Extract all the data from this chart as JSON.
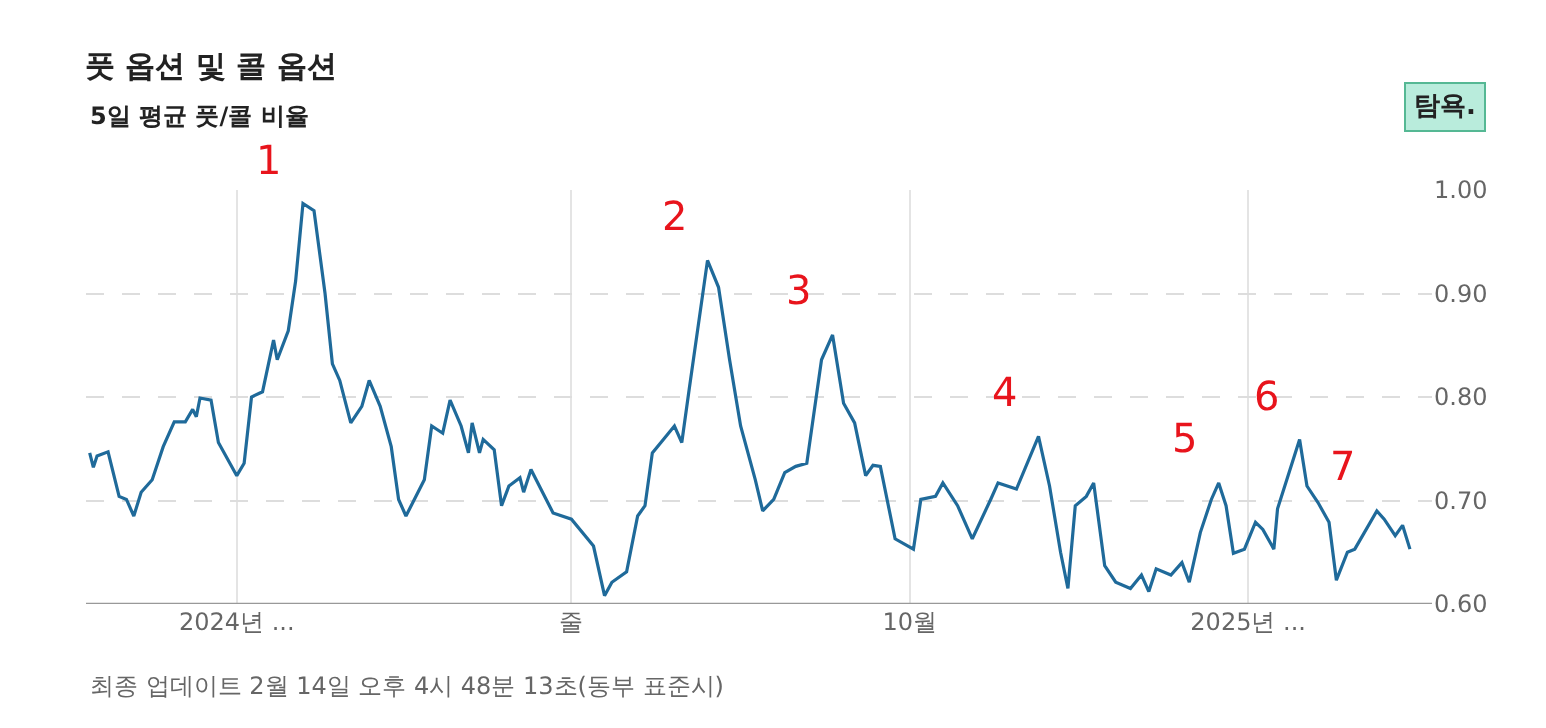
{
  "chart_data": {
    "type": "line",
    "title": "풋 옵션 및 콜 옵션",
    "subtitle": "5일 평균 풋/콜 비율",
    "annotations": [
      "탐욕.",
      "최종 업데이트 2월 14일 오후 4시 48분 13초(동부 표준시)",
      {
        "text": "1",
        "x": "2024-04-19",
        "y": 0.987
      },
      {
        "text": "2",
        "x": "2024-08-07",
        "y": 0.932
      },
      {
        "text": "3",
        "x": "2024-09-10",
        "y": 0.86
      },
      {
        "text": "4",
        "x": "2024-11-05",
        "y": 0.762
      },
      {
        "text": "5",
        "x": "2024-12-24",
        "y": 0.717
      },
      {
        "text": "6",
        "x": "2025-01-15",
        "y": 0.759
      },
      {
        "text": "7",
        "x": "2025-02-05",
        "y": 0.69
      }
    ],
    "x": [
      "2024-02-21",
      "2024-02-22",
      "2024-02-23",
      "2024-02-26",
      "2024-02-29",
      "2024-03-02",
      "2024-03-04",
      "2024-03-06",
      "2024-03-09",
      "2024-03-12",
      "2024-03-15",
      "2024-03-18",
      "2024-03-20",
      "2024-03-21",
      "2024-03-22",
      "2024-03-25",
      "2024-03-27",
      "2024-04-01",
      "2024-04-03",
      "2024-04-05",
      "2024-04-08",
      "2024-04-11",
      "2024-04-12",
      "2024-04-15",
      "2024-04-17",
      "2024-04-19",
      "2024-04-22",
      "2024-04-25",
      "2024-04-27",
      "2024-04-29",
      "2024-05-02",
      "2024-05-05",
      "2024-05-07",
      "2024-05-10",
      "2024-05-13",
      "2024-05-15",
      "2024-05-17",
      "2024-05-22",
      "2024-05-24",
      "2024-05-27",
      "2024-05-29",
      "2024-06-01",
      "2024-06-03",
      "2024-06-04",
      "2024-06-06",
      "2024-06-07",
      "2024-06-10",
      "2024-06-12",
      "2024-06-14",
      "2024-06-17",
      "2024-06-18",
      "2024-06-20",
      "2024-06-23",
      "2024-06-26",
      "2024-07-01",
      "2024-07-07",
      "2024-07-10",
      "2024-07-12",
      "2024-07-16",
      "2024-07-19",
      "2024-07-21",
      "2024-07-23",
      "2024-07-26",
      "2024-07-29",
      "2024-07-31",
      "2024-08-02",
      "2024-08-07",
      "2024-08-10",
      "2024-08-13",
      "2024-08-16",
      "2024-08-20",
      "2024-08-22",
      "2024-08-25",
      "2024-08-28",
      "2024-08-31",
      "2024-09-03",
      "2024-09-07",
      "2024-09-10",
      "2024-09-13",
      "2024-09-16",
      "2024-09-19",
      "2024-09-21",
      "2024-09-23",
      "2024-09-27",
      "2024-10-02",
      "2024-10-04",
      "2024-10-08",
      "2024-10-10",
      "2024-10-14",
      "2024-10-18",
      "2024-10-23",
      "2024-10-25",
      "2024-10-30",
      "2024-11-05",
      "2024-11-08",
      "2024-11-11",
      "2024-11-13",
      "2024-11-15",
      "2024-11-18",
      "2024-11-20",
      "2024-11-23",
      "2024-11-26",
      "2024-11-30",
      "2024-12-03",
      "2024-12-05",
      "2024-12-07",
      "2024-12-11",
      "2024-12-14",
      "2024-12-16",
      "2024-12-19",
      "2024-12-22",
      "2024-12-24",
      "2024-12-26",
      "2024-12-28",
      "2024-12-31",
      "2025-01-03",
      "2025-01-05",
      "2025-01-08",
      "2025-01-09",
      "2025-01-15",
      "2025-01-17",
      "2025-01-20",
      "2025-01-23",
      "2025-01-25",
      "2025-01-28",
      "2025-01-30",
      "2025-02-05",
      "2025-02-07",
      "2025-02-10",
      "2025-02-12",
      "2025-02-14"
    ],
    "series": [
      {
        "color": "#1f6a9a",
        "values": [
          0.746,
          0.732,
          0.743,
          0.747,
          0.704,
          0.701,
          0.685,
          0.708,
          0.72,
          0.752,
          0.776,
          0.776,
          0.788,
          0.781,
          0.799,
          0.797,
          0.756,
          0.724,
          0.736,
          0.8,
          0.805,
          0.855,
          0.836,
          0.864,
          0.912,
          0.987,
          0.98,
          0.9,
          0.832,
          0.816,
          0.775,
          0.791,
          0.816,
          0.791,
          0.752,
          0.701,
          0.685,
          0.72,
          0.772,
          0.765,
          0.797,
          0.772,
          0.746,
          0.775,
          0.746,
          0.759,
          0.749,
          0.695,
          0.714,
          0.722,
          0.708,
          0.73,
          0.709,
          0.688,
          0.682,
          0.656,
          0.608,
          0.621,
          0.631,
          0.685,
          0.695,
          0.746,
          0.759,
          0.772,
          0.756,
          0.807,
          0.932,
          0.906,
          0.836,
          0.772,
          0.72,
          0.69,
          0.701,
          0.727,
          0.733,
          0.736,
          0.836,
          0.86,
          0.794,
          0.775,
          0.724,
          0.734,
          0.733,
          0.663,
          0.653,
          0.701,
          0.704,
          0.717,
          0.695,
          0.663,
          0.701,
          0.717,
          0.711,
          0.762,
          0.714,
          0.65,
          0.615,
          0.695,
          0.704,
          0.717,
          0.637,
          0.621,
          0.615,
          0.628,
          0.612,
          0.634,
          0.628,
          0.64,
          0.621,
          0.669,
          0.701,
          0.717,
          0.695,
          0.649,
          0.653,
          0.679,
          0.672,
          0.653,
          0.692,
          0.759,
          0.714,
          0.698,
          0.679,
          0.623,
          0.65,
          0.653,
          0.69,
          0.682,
          0.666,
          0.676,
          0.653
        ]
      }
    ],
    "xlim": [
      "2024-02-20",
      "2025-02-20"
    ],
    "xticks": [
      {
        "value": "2024-04-01",
        "label": "2024년 ..."
      },
      {
        "value": "2024-07-01",
        "label": "줄"
      },
      {
        "value": "2024-10-01",
        "label": "10월"
      },
      {
        "value": "2025-01-01",
        "label": "2025년 ..."
      }
    ],
    "ylim": [
      0.6,
      1.0
    ],
    "yticks": [
      {
        "value": 0.6,
        "label": "0.60"
      },
      {
        "value": 0.7,
        "label": "0.70"
      },
      {
        "value": 0.8,
        "label": "0.80"
      },
      {
        "value": 0.9,
        "label": "0.90"
      },
      {
        "value": 1.0,
        "label": "1.00"
      }
    ],
    "grid": true,
    "marker": "none",
    "line_style": "solid"
  }
}
